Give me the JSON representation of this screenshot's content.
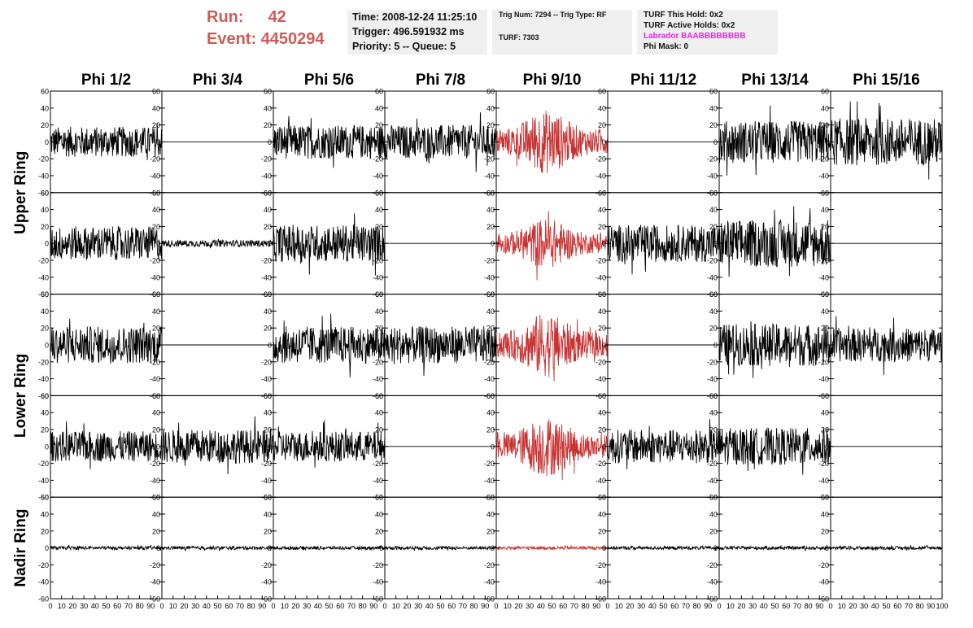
{
  "header": {
    "run_label": "Run:",
    "run_value": "42",
    "event_label": "Event:",
    "event_value": "4450294",
    "time": "Time: 2008-12-24 11:25:10",
    "trigger": "Trigger: 496.591932 ms",
    "priority": "Priority: 5 -- Queue: 5",
    "trig_num": "Trig Num: 7294 -- Trig Type: RF",
    "turf": "TURF: 7303",
    "turf_this_hold": "TURF This Hold: 0x2",
    "turf_active_holds": "TURF Active Holds: 0x2",
    "labrador": "Labrador BAABBBBBBBB",
    "phi_mask": "Phi Mask: 0"
  },
  "colors": {
    "run_text": "#d05a5a",
    "trace_normal": "#000000",
    "trace_triggered": "#c83232",
    "labrador_text": "#ee22ee",
    "info_box_bg": "#efefef"
  },
  "chart_data": {
    "type": "line",
    "columns": [
      "Phi 1/2",
      "Phi 3/4",
      "Phi 5/6",
      "Phi 7/8",
      "Phi 9/10",
      "Phi 11/12",
      "Phi 13/14",
      "Phi 15/16"
    ],
    "row_labels": [
      "Upper Ring",
      "Lower Ring",
      "Nadir Ring"
    ],
    "rows": 5,
    "xlim": [
      0,
      100
    ],
    "ylim": [
      -60,
      60
    ],
    "x_ticks": [
      0,
      10,
      20,
      30,
      40,
      50,
      60,
      70,
      80,
      90,
      100
    ],
    "y_ticks": [
      -60,
      -40,
      -20,
      0,
      20,
      40,
      60
    ],
    "x_tick_labels_shown": [
      "0",
      "10",
      "20",
      "30",
      "40",
      "50",
      "60",
      "70",
      "80",
      "90",
      "100"
    ],
    "y_tick_labels": [
      "-60",
      "-40",
      "-20",
      "0",
      "20",
      "40",
      "60"
    ],
    "highlighted_column": "Phi 9/10",
    "panels": [
      {
        "row": 0,
        "col": 0,
        "amplitude": 18,
        "state": "noise"
      },
      {
        "row": 0,
        "col": 1,
        "amplitude": 0,
        "state": "flat"
      },
      {
        "row": 0,
        "col": 2,
        "amplitude": 20,
        "state": "noise"
      },
      {
        "row": 0,
        "col": 3,
        "amplitude": 20,
        "state": "noise"
      },
      {
        "row": 0,
        "col": 4,
        "amplitude": 32,
        "state": "signal"
      },
      {
        "row": 0,
        "col": 5,
        "amplitude": 0,
        "state": "flat"
      },
      {
        "row": 0,
        "col": 6,
        "amplitude": 25,
        "state": "noise"
      },
      {
        "row": 0,
        "col": 7,
        "amplitude": 28,
        "state": "noise"
      },
      {
        "row": 1,
        "col": 0,
        "amplitude": 20,
        "state": "noise"
      },
      {
        "row": 1,
        "col": 1,
        "amplitude": 4,
        "state": "low"
      },
      {
        "row": 1,
        "col": 2,
        "amplitude": 22,
        "state": "noise"
      },
      {
        "row": 1,
        "col": 3,
        "amplitude": 0,
        "state": "flat"
      },
      {
        "row": 1,
        "col": 4,
        "amplitude": 25,
        "state": "signal"
      },
      {
        "row": 1,
        "col": 5,
        "amplitude": 22,
        "state": "noise"
      },
      {
        "row": 1,
        "col": 6,
        "amplitude": 28,
        "state": "noise"
      },
      {
        "row": 1,
        "col": 7,
        "amplitude": 0,
        "state": "flat"
      },
      {
        "row": 2,
        "col": 0,
        "amplitude": 22,
        "state": "noise"
      },
      {
        "row": 2,
        "col": 1,
        "amplitude": 0,
        "state": "flat"
      },
      {
        "row": 2,
        "col": 2,
        "amplitude": 22,
        "state": "noise"
      },
      {
        "row": 2,
        "col": 3,
        "amplitude": 22,
        "state": "noise"
      },
      {
        "row": 2,
        "col": 4,
        "amplitude": 32,
        "state": "signal"
      },
      {
        "row": 2,
        "col": 5,
        "amplitude": 0,
        "state": "flat"
      },
      {
        "row": 2,
        "col": 6,
        "amplitude": 25,
        "state": "noise"
      },
      {
        "row": 2,
        "col": 7,
        "amplitude": 20,
        "state": "noise"
      },
      {
        "row": 3,
        "col": 0,
        "amplitude": 18,
        "state": "noise"
      },
      {
        "row": 3,
        "col": 1,
        "amplitude": 20,
        "state": "noise"
      },
      {
        "row": 3,
        "col": 2,
        "amplitude": 18,
        "state": "noise"
      },
      {
        "row": 3,
        "col": 3,
        "amplitude": 0,
        "state": "flat"
      },
      {
        "row": 3,
        "col": 4,
        "amplitude": 30,
        "state": "signal"
      },
      {
        "row": 3,
        "col": 5,
        "amplitude": 20,
        "state": "noise"
      },
      {
        "row": 3,
        "col": 6,
        "amplitude": 22,
        "state": "noise"
      },
      {
        "row": 3,
        "col": 7,
        "amplitude": 0,
        "state": "flat"
      },
      {
        "row": 4,
        "col": 0,
        "amplitude": 2,
        "state": "low"
      },
      {
        "row": 4,
        "col": 1,
        "amplitude": 2,
        "state": "low"
      },
      {
        "row": 4,
        "col": 2,
        "amplitude": 2,
        "state": "low"
      },
      {
        "row": 4,
        "col": 3,
        "amplitude": 2,
        "state": "low"
      },
      {
        "row": 4,
        "col": 4,
        "amplitude": 2,
        "state": "low"
      },
      {
        "row": 4,
        "col": 5,
        "amplitude": 2,
        "state": "low"
      },
      {
        "row": 4,
        "col": 6,
        "amplitude": 2,
        "state": "low"
      },
      {
        "row": 4,
        "col": 7,
        "amplitude": 2,
        "state": "low"
      }
    ]
  }
}
